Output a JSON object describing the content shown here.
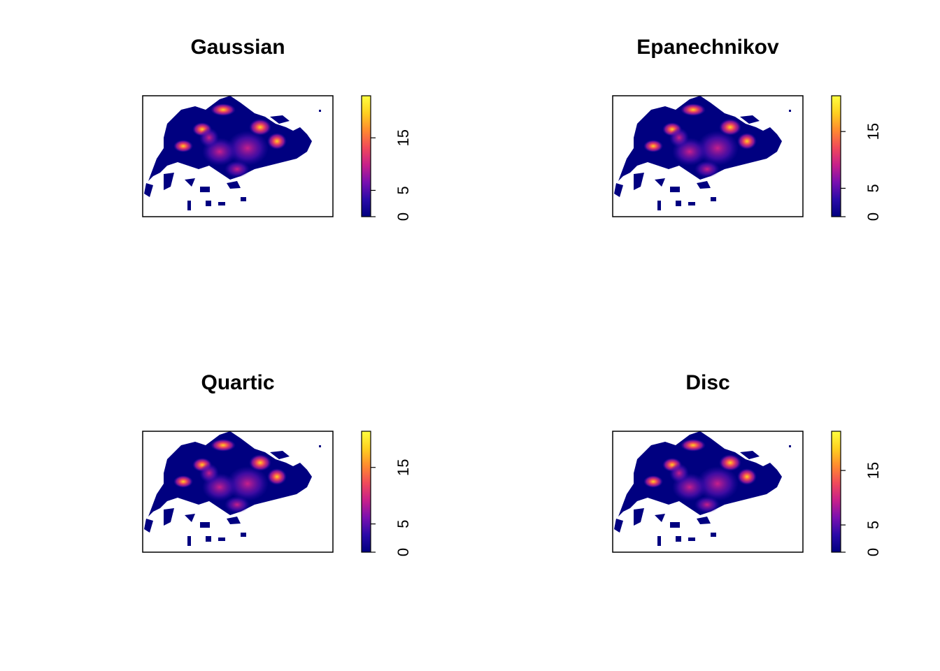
{
  "chart_data": [
    {
      "type": "density-map",
      "title": "Gaussian",
      "zlim": [
        0,
        23
      ],
      "zticks": [
        0,
        5,
        15
      ],
      "colors": [
        "#000080",
        "#2a0aa8",
        "#7a10b0",
        "#c8208a",
        "#f04a5a",
        "#ff8a30",
        "#ffd020",
        "#ffff40"
      ]
    },
    {
      "type": "density-map",
      "title": "Epanechnikov",
      "zlim": [
        0,
        21.3
      ],
      "zticks": [
        0,
        5,
        15
      ],
      "colors": [
        "#000080",
        "#2a0aa8",
        "#7a10b0",
        "#c8208a",
        "#f04a5a",
        "#ff8a30",
        "#ffd020",
        "#ffff40"
      ]
    },
    {
      "type": "density-map",
      "title": "Quartic",
      "zlim": [
        0,
        21.4
      ],
      "zticks": [
        0,
        5,
        15
      ],
      "colors": [
        "#000080",
        "#2a0aa8",
        "#7a10b0",
        "#c8208a",
        "#f04a5a",
        "#ff8a30",
        "#ffd020",
        "#ffff40"
      ]
    },
    {
      "type": "density-map",
      "title": "Disc",
      "zlim": [
        0,
        22.2
      ],
      "zticks": [
        0,
        5,
        15
      ],
      "colors": [
        "#000080",
        "#2a0aa8",
        "#7a10b0",
        "#c8208a",
        "#f04a5a",
        "#ff8a30",
        "#ffd020",
        "#ffff40"
      ]
    }
  ]
}
